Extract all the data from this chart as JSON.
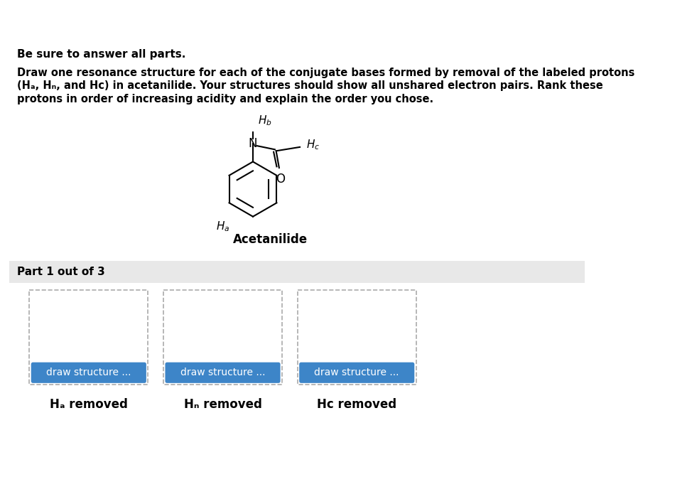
{
  "title_line1": "Be sure to answer all parts.",
  "body_text": "Draw one resonance structure for each of the conjugate bases formed by removal of the labeled protons\n(Hₐ, Hₙ, and Hᴄ) in acetanilide. Your structures should show all unshared electron pairs. Rank these\nprotons in order of increasing acidity and explain the order you chose.",
  "molecule_label": "Acetanilide",
  "part_label": "Part 1 out of 3",
  "draw_button_text": "draw structure ...",
  "button_color": "#3d85c8",
  "button_text_color": "#ffffff",
  "removed_labels": [
    "Hₐ removed",
    "Hₙ removed",
    "Hᴄ removed"
  ],
  "bg_color": "#ffffff",
  "part_bg_color": "#e8e8e8",
  "box_border_color": "#aaaaaa",
  "text_color": "#000000",
  "font_size_title": 11,
  "font_size_body": 10.5,
  "font_size_label": 11,
  "font_size_part": 11
}
